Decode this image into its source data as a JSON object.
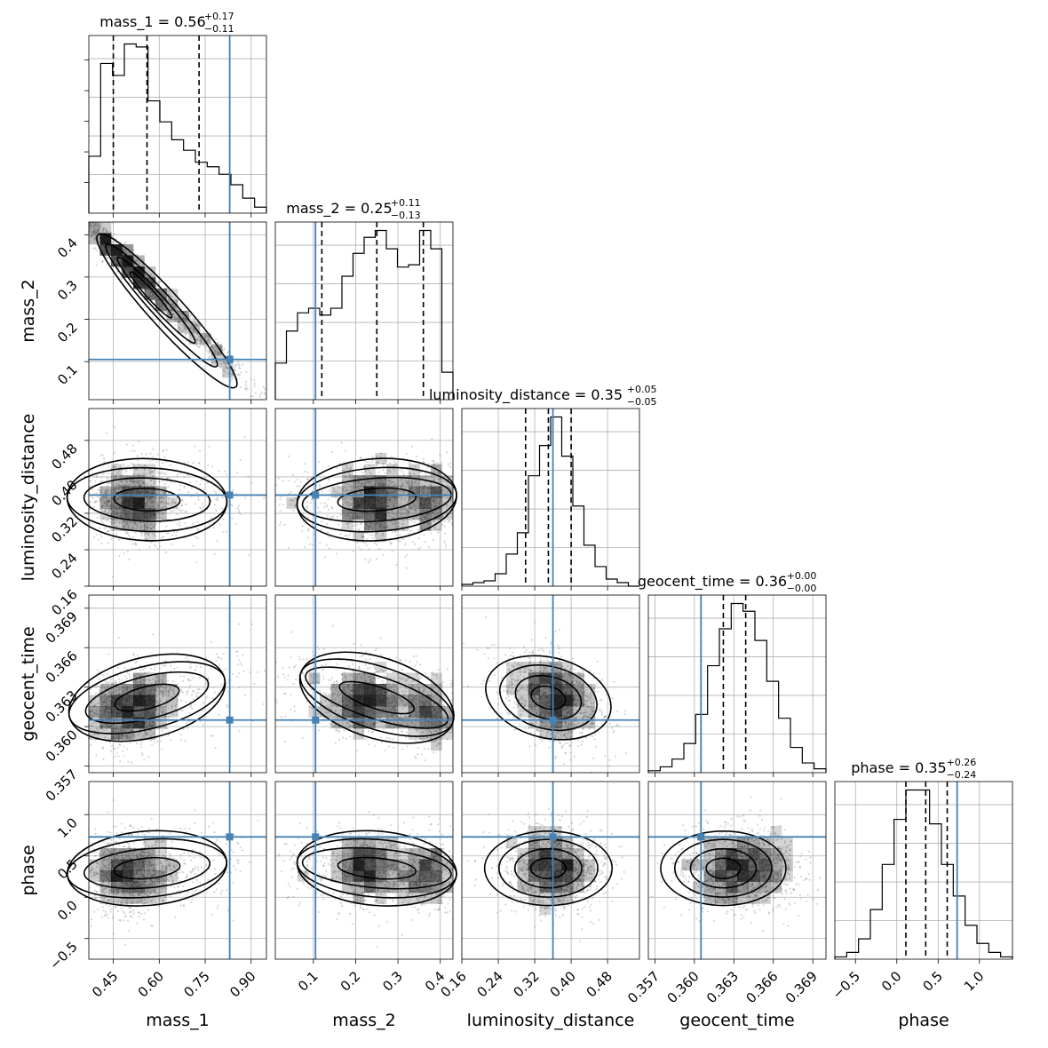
{
  "colors": {
    "truth": "#4682b4",
    "hist": "#000000",
    "grid": "#b0b0b0",
    "points": "#8a8a8a",
    "density": "#000000"
  },
  "chart_data": {
    "type": "corner",
    "grid": true,
    "parameters": [
      {
        "name": "mass_1",
        "label": "mass_1",
        "range": [
          0.37,
          0.95
        ],
        "ticks": [
          0.45,
          0.6,
          0.75,
          0.9
        ],
        "tick_labels": [
          "0.45",
          "0.60",
          "0.75",
          "0.90"
        ],
        "truth": 0.83,
        "title": {
          "main": "mass_1 = 0.56",
          "plus": "+0.17",
          "minus": "−0.11"
        },
        "quantiles": [
          0.45,
          0.56,
          0.73
        ],
        "hist": [
          38,
          100,
          92,
          113,
          111,
          75,
          61,
          49,
          42,
          34,
          31,
          26,
          19,
          10,
          4
        ]
      },
      {
        "name": "mass_2",
        "label": "mass_2",
        "range": [
          0.01,
          0.43
        ],
        "ticks": [
          0.1,
          0.2,
          0.3,
          0.4
        ],
        "tick_labels": [
          "0.1",
          "0.2",
          "0.3",
          "0.4"
        ],
        "truth": 0.105,
        "title": {
          "main": "mass_2 = 0.25",
          "plus": "+0.11",
          "minus": "−0.13"
        },
        "quantiles": [
          0.12,
          0.25,
          0.36
        ],
        "hist": [
          16,
          30,
          38,
          40,
          37,
          40,
          54,
          64,
          71,
          74,
          66,
          58,
          59,
          74,
          66,
          12
        ]
      },
      {
        "name": "luminosity_distance",
        "label": "luminosity_distance",
        "range": [
          0.16,
          0.55
        ],
        "ticks": [
          0.16,
          0.24,
          0.32,
          0.4,
          0.48
        ],
        "tick_labels": [
          "0.16",
          "0.24",
          "0.32",
          "0.40",
          "0.48"
        ],
        "truth": 0.36,
        "title": {
          "main": "luminosity_distance = 0.35",
          "plus": "+0.05",
          "minus": "−0.05"
        },
        "quantiles": [
          0.3,
          0.35,
          0.4
        ],
        "hist": [
          1,
          2,
          3,
          7,
          18,
          30,
          62,
          79,
          95,
          73,
          45,
          23,
          11,
          4,
          2,
          0
        ]
      },
      {
        "name": "geocent_time",
        "label": "geocent_time",
        "range": [
          0.3565,
          0.37
        ],
        "ticks": [
          0.357,
          0.36,
          0.363,
          0.366,
          0.369
        ],
        "tick_labels": [
          "0.357",
          "0.360",
          "0.363",
          "0.366",
          "0.369"
        ],
        "truth": 0.3605,
        "title": {
          "main": "geocent_time = 0.36",
          "plus": "+0.00",
          "minus": "−0.00"
        },
        "quantiles": [
          0.3605,
          0.3622,
          0.3639
        ],
        "hist": [
          1,
          3,
          7,
          15,
          30,
          55,
          74,
          87,
          83,
          68,
          47,
          28,
          13,
          5,
          2
        ]
      },
      {
        "name": "phase",
        "label": "phase",
        "range": [
          -0.75,
          1.4
        ],
        "ticks": [
          -0.5,
          0.0,
          0.5,
          1.0
        ],
        "tick_labels": [
          "−0.5",
          "0.0",
          "0.5",
          "1.0"
        ],
        "truth": 0.73,
        "title": {
          "main": "phase = 0.35",
          "plus": "+0.26",
          "minus": "−0.24"
        },
        "quantiles": [
          0.11,
          0.35,
          0.61
        ],
        "hist": [
          1,
          3,
          9,
          22,
          42,
          62,
          75,
          75,
          60,
          42,
          28,
          15,
          7,
          3,
          1
        ]
      }
    ]
  }
}
